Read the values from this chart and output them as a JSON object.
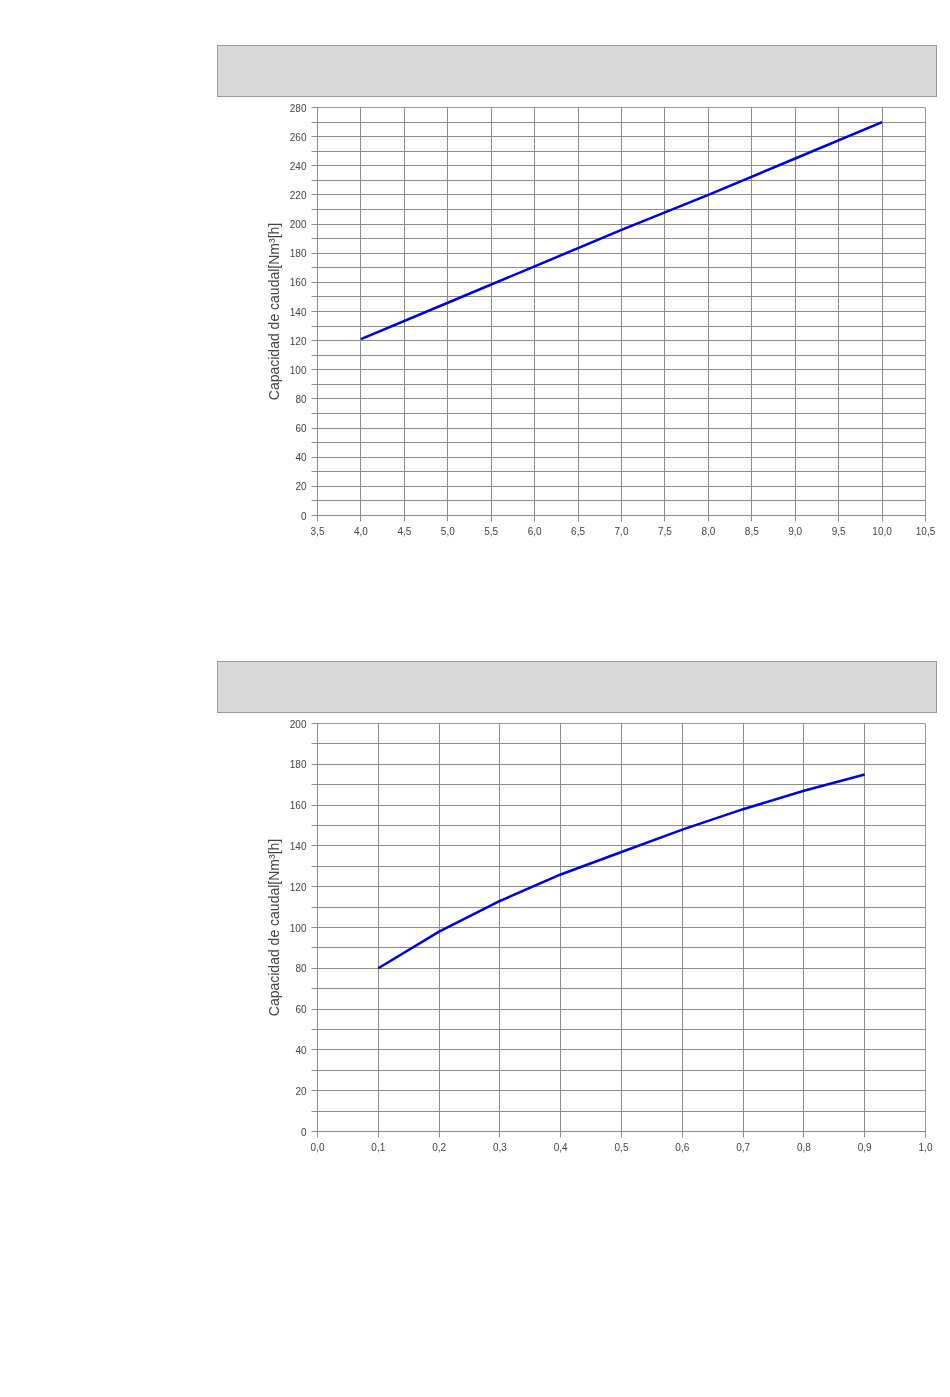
{
  "chart_data": [
    {
      "type": "line",
      "ylabel": "Capacidad de caudal[Nm³[h]",
      "x": [
        4.0,
        5.0,
        6.0,
        7.0,
        8.0,
        9.0,
        10.0
      ],
      "series": [
        {
          "color": "#0000dd",
          "values": [
            121,
            146,
            171,
            196,
            220,
            245,
            270
          ]
        }
      ],
      "xlim": [
        3.5,
        10.5
      ],
      "xticks": [
        {
          "value": 3.5,
          "label": "3,5"
        },
        {
          "value": 4.0,
          "label": "4,0"
        },
        {
          "value": 4.5,
          "label": "4,5"
        },
        {
          "value": 5.0,
          "label": "5,0"
        },
        {
          "value": 5.5,
          "label": "5,5"
        },
        {
          "value": 6.0,
          "label": "6,0"
        },
        {
          "value": 6.5,
          "label": "6,5"
        },
        {
          "value": 7.0,
          "label": "7,0"
        },
        {
          "value": 7.5,
          "label": "7,5"
        },
        {
          "value": 8.0,
          "label": "8,0"
        },
        {
          "value": 8.5,
          "label": "8,5"
        },
        {
          "value": 9.0,
          "label": "9,0"
        },
        {
          "value": 9.5,
          "label": "9,5"
        },
        {
          "value": 10.0,
          "label": "10,0"
        },
        {
          "value": 10.5,
          "label": "10,5"
        }
      ],
      "ylim": [
        0,
        280
      ],
      "yticks": [
        0,
        {
          "value": 10,
          "label": null
        },
        20,
        {
          "value": 30,
          "label": null
        },
        40,
        {
          "value": 50,
          "label": null
        },
        60,
        {
          "value": 70,
          "label": null
        },
        80,
        {
          "value": 90,
          "label": null
        },
        100,
        {
          "value": 110,
          "label": null
        },
        120,
        {
          "value": 130,
          "label": null
        },
        140,
        {
          "value": 150,
          "label": null
        },
        160,
        {
          "value": 170,
          "label": null
        },
        180,
        {
          "value": 190,
          "label": null
        },
        200,
        {
          "value": 210,
          "label": null
        },
        220,
        {
          "value": 230,
          "label": null
        },
        240,
        {
          "value": 250,
          "label": null
        },
        260,
        {
          "value": 270,
          "label": null
        },
        280
      ],
      "grid": true,
      "marker": "none",
      "line_style": "solid"
    },
    {
      "type": "line",
      "ylabel": "Capacidad de caudal[Nm³[h]",
      "x": [
        0.1,
        0.2,
        0.3,
        0.4,
        0.5,
        0.6,
        0.7,
        0.8,
        0.9
      ],
      "series": [
        {
          "color": "#0000dd",
          "values": [
            80,
            98,
            113,
            126,
            137,
            148,
            158,
            167,
            175
          ]
        }
      ],
      "xlim": [
        0.0,
        1.0
      ],
      "xticks": [
        {
          "value": 0.0,
          "label": "0,0"
        },
        {
          "value": 0.1,
          "label": "0,1"
        },
        {
          "value": 0.2,
          "label": "0,2"
        },
        {
          "value": 0.3,
          "label": "0,3"
        },
        {
          "value": 0.4,
          "label": "0,4"
        },
        {
          "value": 0.5,
          "label": "0,5"
        },
        {
          "value": 0.6,
          "label": "0,6"
        },
        {
          "value": 0.7,
          "label": "0,7"
        },
        {
          "value": 0.8,
          "label": "0,8"
        },
        {
          "value": 0.9,
          "label": "0,9"
        },
        {
          "value": 1.0,
          "label": "1,0"
        }
      ],
      "ylim": [
        0,
        200
      ],
      "yticks": [
        0,
        {
          "value": 10,
          "label": null
        },
        20,
        {
          "value": 30,
          "label": null
        },
        40,
        {
          "value": 50,
          "label": null
        },
        60,
        {
          "value": 70,
          "label": null
        },
        80,
        {
          "value": 90,
          "label": null
        },
        100,
        {
          "value": 110,
          "label": null
        },
        120,
        {
          "value": 130,
          "label": null
        },
        140,
        {
          "value": 150,
          "label": null
        },
        160,
        {
          "value": 170,
          "label": null
        },
        180,
        {
          "value": 190,
          "label": null
        },
        200
      ],
      "grid": true,
      "marker": "none",
      "line_style": "solid"
    }
  ]
}
